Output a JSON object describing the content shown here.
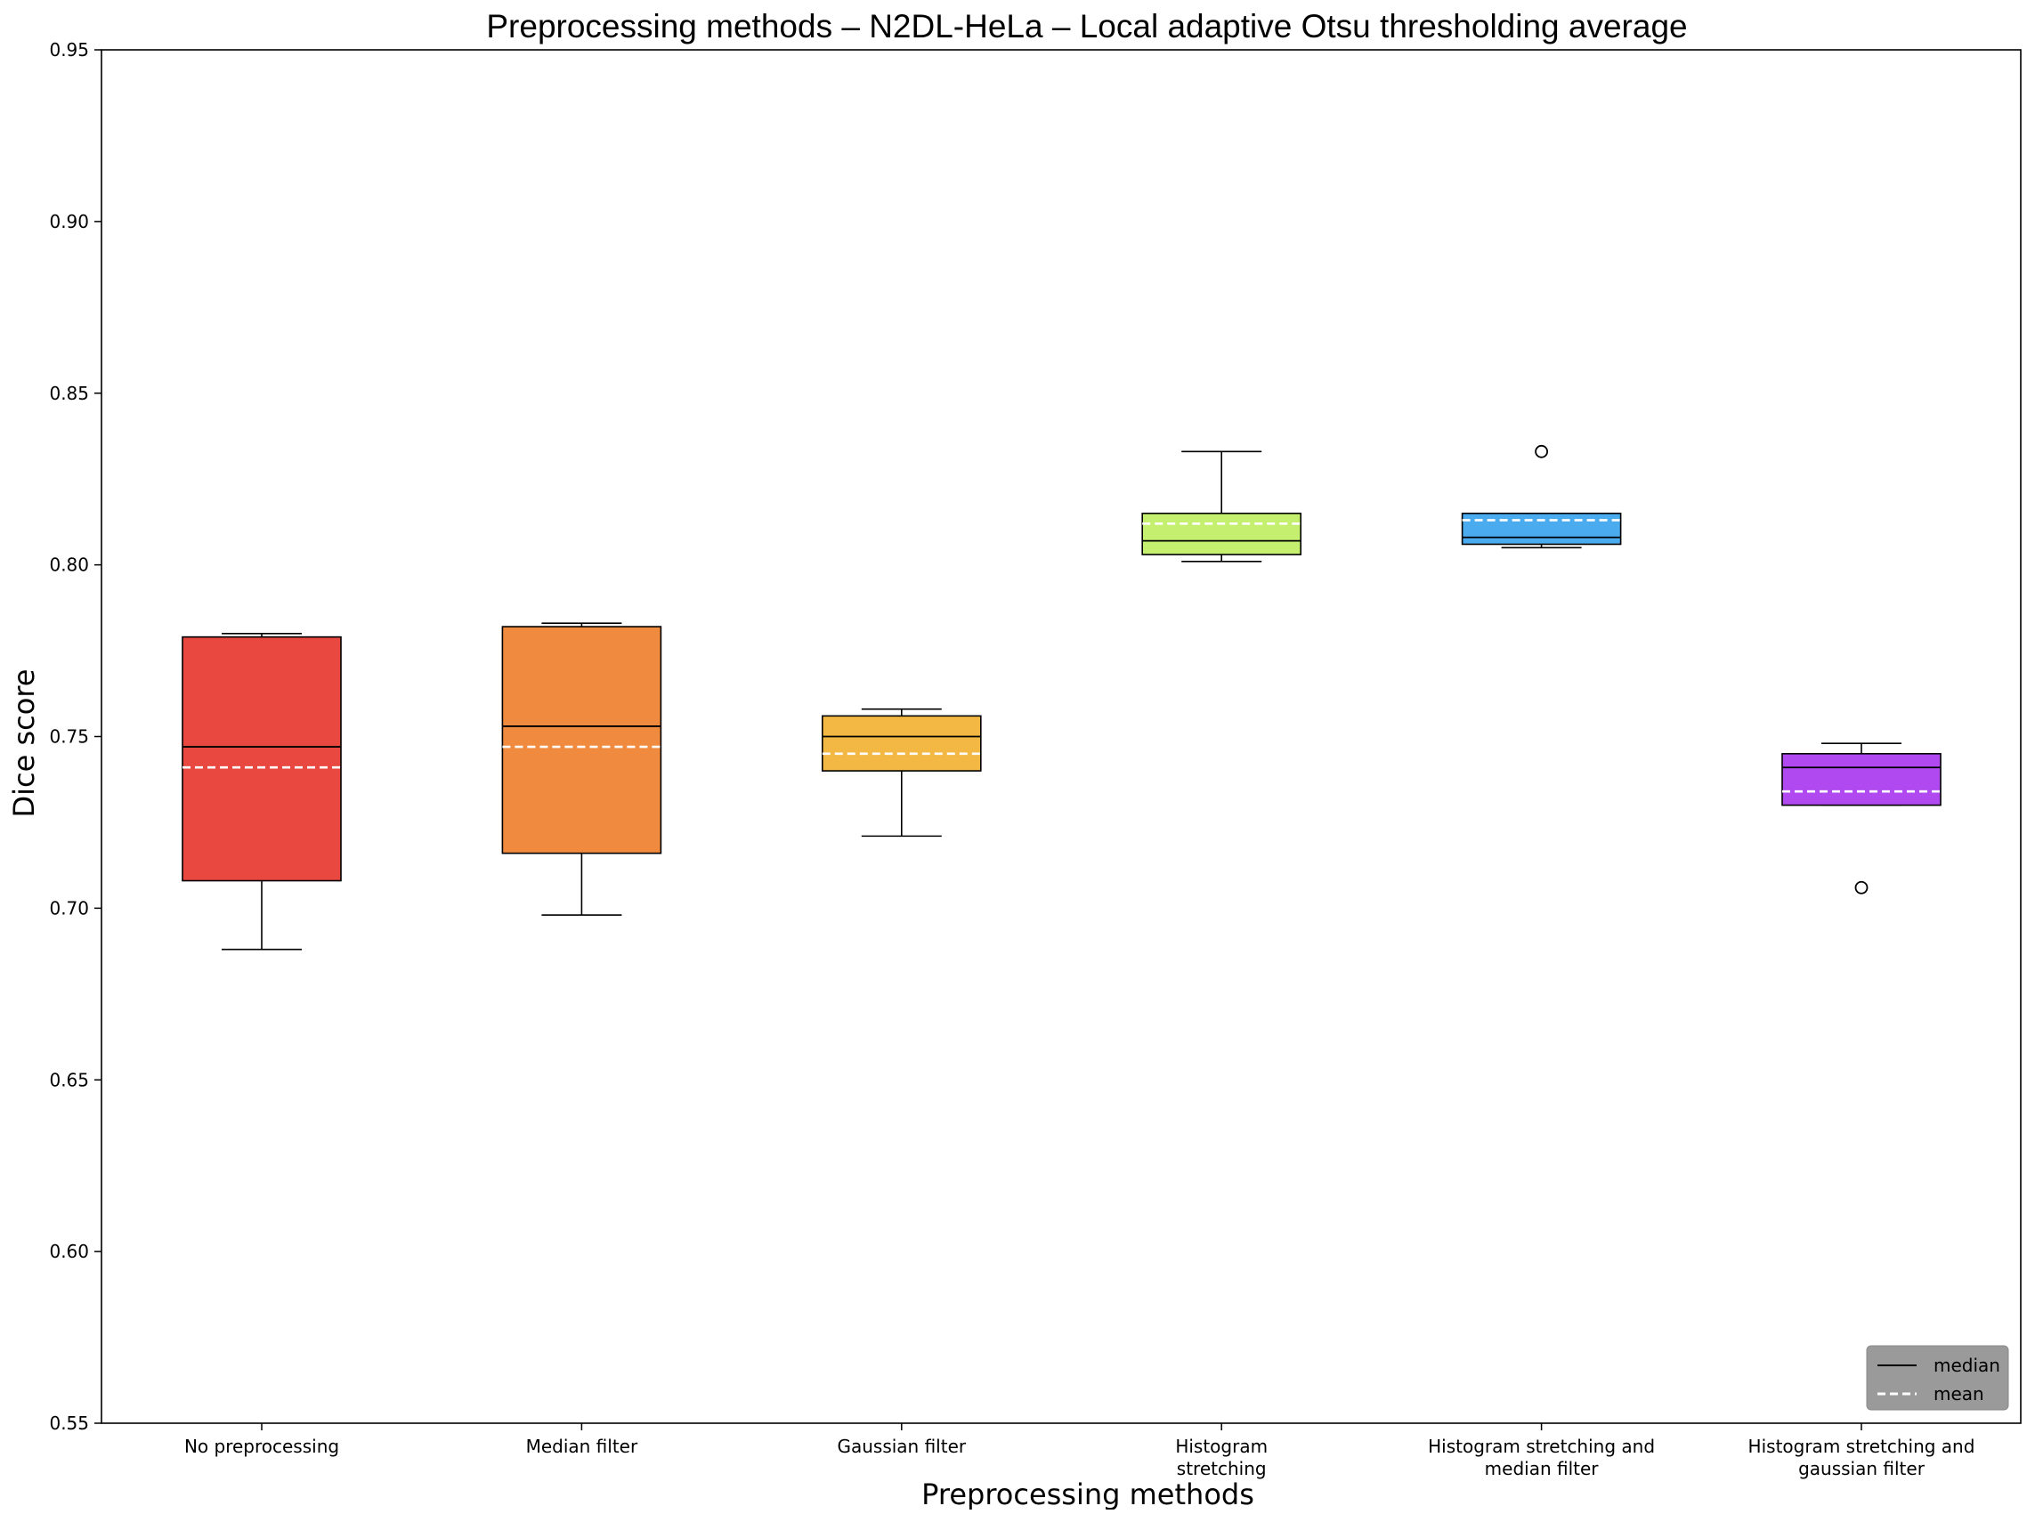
{
  "chart_data": {
    "type": "box",
    "title": "Preprocessing methods – N2DL-HeLa – Local adaptive Otsu thresholding average",
    "xlabel": "Preprocessing methods",
    "ylabel": "Dice score",
    "ylim": [
      0.55,
      0.95
    ],
    "yticks": [
      "0.55",
      "0.60",
      "0.65",
      "0.70",
      "0.75",
      "0.80",
      "0.85",
      "0.90",
      "0.95"
    ],
    "grid": false,
    "legend": {
      "position": "bottom-right",
      "entries": [
        {
          "label": "median",
          "style": "solid",
          "color": "#000000"
        },
        {
          "label": "mean",
          "style": "dashed",
          "color": "#ffffff"
        }
      ]
    },
    "categories": [
      [
        "No preprocessing"
      ],
      [
        "Median filter"
      ],
      [
        "Gaussian filter"
      ],
      [
        "Histogram",
        "stretching"
      ],
      [
        "Histogram stretching and",
        "median filter"
      ],
      [
        "Histogram stretching and",
        "gaussian filter"
      ]
    ],
    "boxes": [
      {
        "whisker_low": 0.688,
        "q1": 0.708,
        "median": 0.747,
        "mean": 0.741,
        "q3": 0.779,
        "whisker_high": 0.78,
        "outliers": [],
        "color": "#e8483f"
      },
      {
        "whisker_low": 0.698,
        "q1": 0.716,
        "median": 0.753,
        "mean": 0.747,
        "q3": 0.782,
        "whisker_high": 0.783,
        "outliers": [],
        "color": "#ef8a3f"
      },
      {
        "whisker_low": 0.721,
        "q1": 0.74,
        "median": 0.75,
        "mean": 0.745,
        "q3": 0.756,
        "whisker_high": 0.758,
        "outliers": [],
        "color": "#f3b843"
      },
      {
        "whisker_low": 0.801,
        "q1": 0.803,
        "median": 0.807,
        "mean": 0.812,
        "q3": 0.815,
        "whisker_high": 0.833,
        "outliers": [],
        "color": "#c5ef6f"
      },
      {
        "whisker_low": 0.805,
        "q1": 0.806,
        "median": 0.808,
        "mean": 0.813,
        "q3": 0.815,
        "whisker_high": 0.815,
        "outliers": [
          0.833
        ],
        "color": "#4aabee"
      },
      {
        "whisker_low": 0.73,
        "q1": 0.73,
        "median": 0.741,
        "mean": 0.734,
        "q3": 0.745,
        "whisker_high": 0.748,
        "outliers": [
          0.706
        ],
        "color": "#b04af0"
      }
    ]
  }
}
